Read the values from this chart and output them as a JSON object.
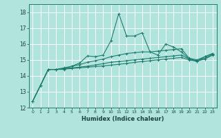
{
  "xlabel": "Humidex (Indice chaleur)",
  "bg_color": "#b2e4de",
  "grid_color": "#ffffff",
  "line_color": "#1e7b6e",
  "xlim": [
    -0.5,
    23.5
  ],
  "ylim": [
    12,
    18.5
  ],
  "yticks": [
    12,
    13,
    14,
    15,
    16,
    17,
    18
  ],
  "xticks": [
    0,
    1,
    2,
    3,
    4,
    5,
    6,
    7,
    8,
    9,
    10,
    11,
    12,
    13,
    14,
    15,
    16,
    17,
    18,
    19,
    20,
    21,
    22,
    23
  ],
  "series": [
    [
      12.4,
      13.4,
      14.4,
      14.4,
      14.4,
      14.6,
      14.8,
      15.25,
      15.2,
      15.3,
      16.2,
      17.9,
      16.5,
      16.5,
      16.7,
      15.5,
      15.3,
      16.0,
      15.8,
      15.5,
      15.05,
      14.9,
      15.2,
      15.4
    ],
    [
      12.4,
      13.4,
      14.4,
      14.4,
      14.5,
      14.6,
      14.7,
      14.85,
      14.95,
      15.05,
      15.2,
      15.3,
      15.4,
      15.45,
      15.5,
      15.5,
      15.55,
      15.6,
      15.65,
      15.7,
      15.1,
      15.0,
      15.2,
      15.4
    ],
    [
      12.4,
      13.4,
      14.4,
      14.4,
      14.45,
      14.5,
      14.55,
      14.6,
      14.68,
      14.76,
      14.85,
      14.9,
      14.95,
      15.0,
      15.05,
      15.1,
      15.15,
      15.2,
      15.25,
      15.3,
      15.05,
      14.95,
      15.1,
      15.35
    ],
    [
      12.4,
      13.4,
      14.4,
      14.4,
      14.42,
      14.46,
      14.5,
      14.54,
      14.58,
      14.62,
      14.67,
      14.72,
      14.78,
      14.84,
      14.9,
      14.95,
      15.0,
      15.05,
      15.1,
      15.15,
      15.0,
      14.92,
      15.05,
      15.3
    ]
  ]
}
